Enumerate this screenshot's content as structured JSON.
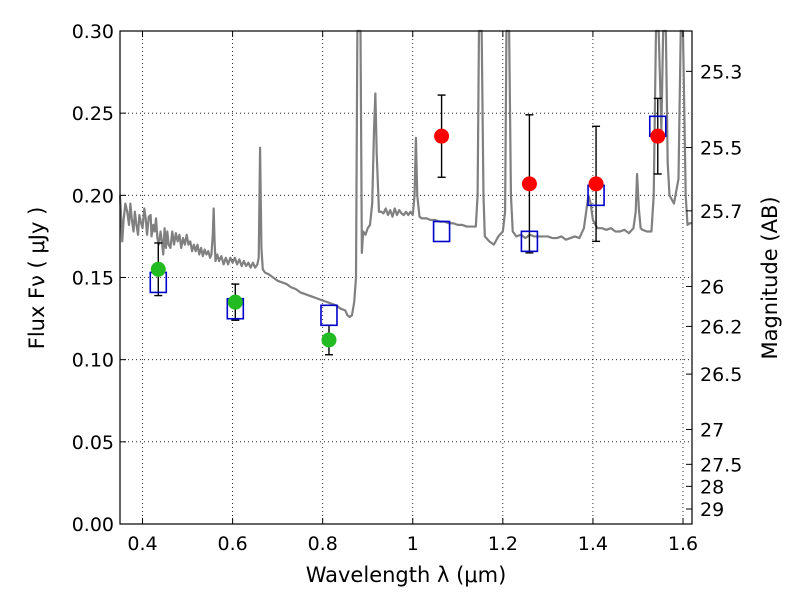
{
  "chart_data": {
    "type": "scatter",
    "xlabel": "Wavelength  λ (μm)",
    "ylabel": "Flux  Fν  ( μJy )",
    "ylabel_right": "Magnitude (AB)",
    "xlim": [
      0.35,
      1.62
    ],
    "ylim": [
      0.0,
      0.3
    ],
    "grid": true,
    "x_ticks": [
      {
        "value": 0.4,
        "label": "0.4"
      },
      {
        "value": 0.6,
        "label": "0.6"
      },
      {
        "value": 0.8,
        "label": "0.8"
      },
      {
        "value": 1.0,
        "label": "1"
      },
      {
        "value": 1.2,
        "label": "1.2"
      },
      {
        "value": 1.4,
        "label": "1.4"
      },
      {
        "value": 1.6,
        "label": "1.6"
      }
    ],
    "y_ticks": [
      {
        "value": 0.0,
        "label": "0.00"
      },
      {
        "value": 0.05,
        "label": "0.05"
      },
      {
        "value": 0.1,
        "label": "0.10"
      },
      {
        "value": 0.15,
        "label": "0.15"
      },
      {
        "value": 0.2,
        "label": "0.20"
      },
      {
        "value": 0.25,
        "label": "0.25"
      },
      {
        "value": 0.3,
        "label": "0.30"
      }
    ],
    "right_ticks": [
      {
        "mag": 25.3,
        "label": "25.3"
      },
      {
        "mag": 25.5,
        "label": "25.5"
      },
      {
        "mag": 25.7,
        "label": "25.7"
      },
      {
        "mag": 26.0,
        "label": "26"
      },
      {
        "mag": 26.2,
        "label": "26.2"
      },
      {
        "mag": 26.5,
        "label": "26.5"
      },
      {
        "mag": 27.0,
        "label": "27"
      },
      {
        "mag": 27.5,
        "label": "27.5"
      },
      {
        "mag": 28.0,
        "label": "28"
      },
      {
        "mag": 29.0,
        "label": "29"
      }
    ],
    "series": [
      {
        "role": "template-spectrum",
        "color": "#808080",
        "points": [
          [
            0.35,
            0.2
          ],
          [
            0.352,
            0.19
          ],
          [
            0.355,
            0.172
          ],
          [
            0.358,
            0.185
          ],
          [
            0.362,
            0.195
          ],
          [
            0.366,
            0.19
          ],
          [
            0.37,
            0.182
          ],
          [
            0.373,
            0.195
          ],
          [
            0.376,
            0.186
          ],
          [
            0.38,
            0.178
          ],
          [
            0.383,
            0.19
          ],
          [
            0.386,
            0.183
          ],
          [
            0.39,
            0.176
          ],
          [
            0.393,
            0.188
          ],
          [
            0.396,
            0.184
          ],
          [
            0.4,
            0.18
          ],
          [
            0.404,
            0.192
          ],
          [
            0.407,
            0.186
          ],
          [
            0.41,
            0.176
          ],
          [
            0.414,
            0.187
          ],
          [
            0.418,
            0.188
          ],
          [
            0.42,
            0.175
          ],
          [
            0.424,
            0.182
          ],
          [
            0.427,
            0.178
          ],
          [
            0.43,
            0.186
          ],
          [
            0.433,
            0.174
          ],
          [
            0.436,
            0.17
          ],
          [
            0.44,
            0.178
          ],
          [
            0.443,
            0.172
          ],
          [
            0.446,
            0.164
          ],
          [
            0.449,
            0.18
          ],
          [
            0.452,
            0.168
          ],
          [
            0.455,
            0.178
          ],
          [
            0.458,
            0.17
          ],
          [
            0.462,
            0.168
          ],
          [
            0.466,
            0.178
          ],
          [
            0.47,
            0.17
          ],
          [
            0.474,
            0.177
          ],
          [
            0.478,
            0.172
          ],
          [
            0.482,
            0.176
          ],
          [
            0.486,
            0.168
          ],
          [
            0.49,
            0.174
          ],
          [
            0.494,
            0.17
          ],
          [
            0.498,
            0.176
          ],
          [
            0.502,
            0.17
          ],
          [
            0.506,
            0.172
          ],
          [
            0.51,
            0.166
          ],
          [
            0.514,
            0.17
          ],
          [
            0.518,
            0.166
          ],
          [
            0.522,
            0.17
          ],
          [
            0.526,
            0.164
          ],
          [
            0.53,
            0.168
          ],
          [
            0.534,
            0.163
          ],
          [
            0.538,
            0.167
          ],
          [
            0.542,
            0.164
          ],
          [
            0.546,
            0.166
          ],
          [
            0.55,
            0.162
          ],
          [
            0.553,
            0.164
          ],
          [
            0.556,
            0.176
          ],
          [
            0.558,
            0.192
          ],
          [
            0.56,
            0.172
          ],
          [
            0.562,
            0.16
          ],
          [
            0.566,
            0.164
          ],
          [
            0.57,
            0.16
          ],
          [
            0.575,
            0.163
          ],
          [
            0.58,
            0.158
          ],
          [
            0.585,
            0.162
          ],
          [
            0.59,
            0.158
          ],
          [
            0.595,
            0.162
          ],
          [
            0.6,
            0.159
          ],
          [
            0.605,
            0.162
          ],
          [
            0.61,
            0.158
          ],
          [
            0.615,
            0.161
          ],
          [
            0.62,
            0.157
          ],
          [
            0.625,
            0.16
          ],
          [
            0.63,
            0.157
          ],
          [
            0.635,
            0.159
          ],
          [
            0.64,
            0.156
          ],
          [
            0.645,
            0.159
          ],
          [
            0.65,
            0.156
          ],
          [
            0.655,
            0.158
          ],
          [
            0.658,
            0.162
          ],
          [
            0.661,
            0.229
          ],
          [
            0.664,
            0.168
          ],
          [
            0.667,
            0.155
          ],
          [
            0.672,
            0.153
          ],
          [
            0.68,
            0.152
          ],
          [
            0.69,
            0.15
          ],
          [
            0.7,
            0.148
          ],
          [
            0.71,
            0.147
          ],
          [
            0.72,
            0.146
          ],
          [
            0.73,
            0.144
          ],
          [
            0.74,
            0.143
          ],
          [
            0.75,
            0.141
          ],
          [
            0.76,
            0.14
          ],
          [
            0.77,
            0.139
          ],
          [
            0.78,
            0.138
          ],
          [
            0.79,
            0.137
          ],
          [
            0.8,
            0.136
          ],
          [
            0.81,
            0.135
          ],
          [
            0.82,
            0.134
          ],
          [
            0.83,
            0.133
          ],
          [
            0.84,
            0.131
          ],
          [
            0.85,
            0.13
          ],
          [
            0.855,
            0.127
          ],
          [
            0.86,
            0.126
          ],
          [
            0.865,
            0.127
          ],
          [
            0.87,
            0.135
          ],
          [
            0.874,
            0.15
          ],
          [
            0.877,
            0.3
          ],
          [
            0.88,
            0.3
          ],
          [
            0.884,
            0.3
          ],
          [
            0.887,
            0.165
          ],
          [
            0.89,
            0.178
          ],
          [
            0.895,
            0.176
          ],
          [
            0.9,
            0.18
          ],
          [
            0.905,
            0.182
          ],
          [
            0.91,
            0.195
          ],
          [
            0.914,
            0.24
          ],
          [
            0.917,
            0.262
          ],
          [
            0.92,
            0.225
          ],
          [
            0.925,
            0.19
          ],
          [
            0.93,
            0.19
          ],
          [
            0.935,
            0.189
          ],
          [
            0.94,
            0.192
          ],
          [
            0.945,
            0.188
          ],
          [
            0.95,
            0.191
          ],
          [
            0.955,
            0.187
          ],
          [
            0.96,
            0.192
          ],
          [
            0.965,
            0.188
          ],
          [
            0.97,
            0.191
          ],
          [
            0.975,
            0.189
          ],
          [
            0.98,
            0.188
          ],
          [
            0.985,
            0.19
          ],
          [
            0.99,
            0.188
          ],
          [
            0.995,
            0.19
          ],
          [
            1.0,
            0.188
          ],
          [
            1.004,
            0.2
          ],
          [
            1.007,
            0.235
          ],
          [
            1.01,
            0.2
          ],
          [
            1.015,
            0.187
          ],
          [
            1.02,
            0.186
          ],
          [
            1.03,
            0.186
          ],
          [
            1.04,
            0.185
          ],
          [
            1.05,
            0.185
          ],
          [
            1.06,
            0.184
          ],
          [
            1.07,
            0.184
          ],
          [
            1.08,
            0.183
          ],
          [
            1.09,
            0.183
          ],
          [
            1.1,
            0.182
          ],
          [
            1.11,
            0.182
          ],
          [
            1.12,
            0.181
          ],
          [
            1.13,
            0.181
          ],
          [
            1.14,
            0.181
          ],
          [
            1.144,
            0.2
          ],
          [
            1.147,
            0.3
          ],
          [
            1.153,
            0.3
          ],
          [
            1.157,
            0.2
          ],
          [
            1.16,
            0.175
          ],
          [
            1.17,
            0.172
          ],
          [
            1.18,
            0.17
          ],
          [
            1.19,
            0.175
          ],
          [
            1.2,
            0.178
          ],
          [
            1.205,
            0.19
          ],
          [
            1.208,
            0.3
          ],
          [
            1.214,
            0.3
          ],
          [
            1.218,
            0.2
          ],
          [
            1.222,
            0.178
          ],
          [
            1.23,
            0.175
          ],
          [
            1.24,
            0.176
          ],
          [
            1.25,
            0.174
          ],
          [
            1.26,
            0.176
          ],
          [
            1.27,
            0.175
          ],
          [
            1.28,
            0.175
          ],
          [
            1.29,
            0.175
          ],
          [
            1.3,
            0.175
          ],
          [
            1.31,
            0.174
          ],
          [
            1.32,
            0.174
          ],
          [
            1.33,
            0.175
          ],
          [
            1.34,
            0.173
          ],
          [
            1.35,
            0.174
          ],
          [
            1.36,
            0.175
          ],
          [
            1.37,
            0.174
          ],
          [
            1.38,
            0.18
          ],
          [
            1.385,
            0.19
          ],
          [
            1.39,
            0.2
          ],
          [
            1.395,
            0.195
          ],
          [
            1.4,
            0.185
          ],
          [
            1.41,
            0.18
          ],
          [
            1.42,
            0.18
          ],
          [
            1.43,
            0.179
          ],
          [
            1.44,
            0.18
          ],
          [
            1.45,
            0.178
          ],
          [
            1.46,
            0.178
          ],
          [
            1.47,
            0.179
          ],
          [
            1.48,
            0.177
          ],
          [
            1.49,
            0.18
          ],
          [
            1.495,
            0.19
          ],
          [
            1.498,
            0.213
          ],
          [
            1.502,
            0.192
          ],
          [
            1.506,
            0.18
          ],
          [
            1.51,
            0.179
          ],
          [
            1.52,
            0.178
          ],
          [
            1.53,
            0.178
          ],
          [
            1.535,
            0.2
          ],
          [
            1.54,
            0.3
          ],
          [
            1.546,
            0.3
          ],
          [
            1.552,
            0.24
          ],
          [
            1.556,
            0.3
          ],
          [
            1.562,
            0.3
          ],
          [
            1.566,
            0.22
          ],
          [
            1.57,
            0.2
          ],
          [
            1.58,
            0.195
          ],
          [
            1.59,
            0.21
          ],
          [
            1.595,
            0.3
          ],
          [
            1.6,
            0.3
          ],
          [
            1.606,
            0.2
          ],
          [
            1.61,
            0.182
          ],
          [
            1.615,
            0.183
          ],
          [
            1.62,
            0.183
          ]
        ]
      },
      {
        "role": "observed-optical",
        "color": "#22bb22",
        "marker": "circle",
        "points": [
          {
            "x": 0.435,
            "y": 0.155,
            "err": 0.016
          },
          {
            "x": 0.606,
            "y": 0.135,
            "err": 0.011
          },
          {
            "x": 0.814,
            "y": 0.112,
            "err": 0.009
          }
        ]
      },
      {
        "role": "observed-nir",
        "color": "#ff0000",
        "marker": "circle",
        "points": [
          {
            "x": 1.064,
            "y": 0.236,
            "err": 0.025
          },
          {
            "x": 1.259,
            "y": 0.207,
            "err": 0.042
          },
          {
            "x": 1.407,
            "y": 0.207,
            "err": 0.035
          },
          {
            "x": 1.544,
            "y": 0.236,
            "err": 0.023
          }
        ]
      },
      {
        "role": "model-photometry",
        "color": "#0000cc",
        "marker": "open-square",
        "points": [
          {
            "x": 0.435,
            "y": 0.147
          },
          {
            "x": 0.606,
            "y": 0.131
          },
          {
            "x": 0.814,
            "y": 0.127
          },
          {
            "x": 1.064,
            "y": 0.178
          },
          {
            "x": 1.259,
            "y": 0.172
          },
          {
            "x": 1.407,
            "y": 0.2
          },
          {
            "x": 1.544,
            "y": 0.242
          }
        ]
      }
    ]
  }
}
